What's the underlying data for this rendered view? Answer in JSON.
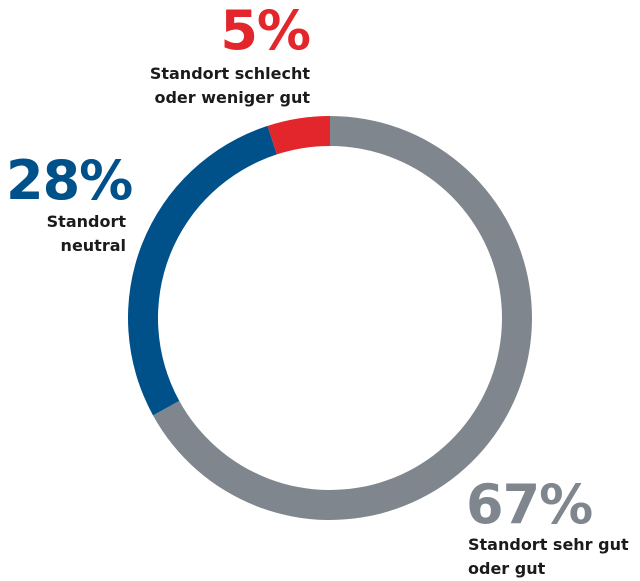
{
  "chart_data": {
    "type": "donut",
    "categories": [
      "Standort sehr gut oder gut",
      "Standort neutral",
      "Standort schlecht oder weniger gut"
    ],
    "values": [
      67,
      28,
      5
    ],
    "value_labels": [
      "67%",
      "28%",
      "5%"
    ],
    "colors": [
      "#7f868d",
      "#00508a",
      "#e3262b"
    ]
  }
}
